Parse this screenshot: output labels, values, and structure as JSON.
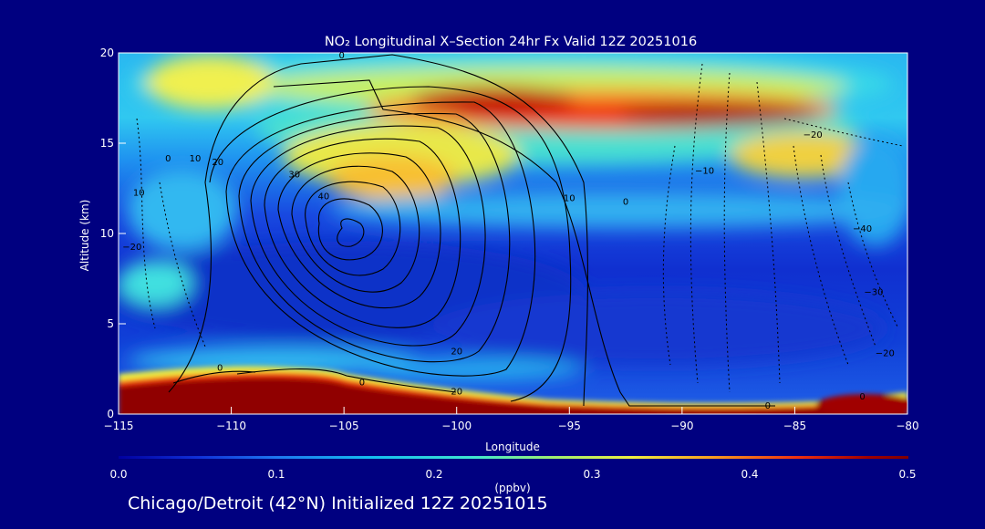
{
  "chart_data": {
    "type": "heatmap",
    "title": "NO₂ Longitudinal X–Section 24hr  Fx Valid 12Z 20251016",
    "xlabel": "Longitude",
    "ylabel": "Altitude (km)",
    "xlim": [
      -115,
      -80
    ],
    "ylim": [
      0,
      20
    ],
    "x_ticks": [
      -115,
      -110,
      -105,
      -100,
      -95,
      -90,
      -85,
      -80
    ],
    "x_tick_labels": [
      "−115",
      "−110",
      "−105",
      "−100",
      "−95",
      "−90",
      "−85",
      "−80"
    ],
    "y_ticks": [
      0,
      5,
      10,
      15,
      20
    ],
    "y_tick_labels": [
      "0",
      "5",
      "10",
      "15",
      "20"
    ],
    "colorbar": {
      "label": "(ppbv)",
      "min": 0.0,
      "max": 0.5,
      "ticks": [
        0.0,
        0.1,
        0.2,
        0.3,
        0.4,
        0.5
      ],
      "tick_labels": [
        "0.0",
        "0.1",
        "0.2",
        "0.3",
        "0.4",
        "0.5"
      ]
    },
    "contour_labels": [
      {
        "text": "0",
        "x": -105.1,
        "y": 19.9
      },
      {
        "text": "0",
        "x": -112.8,
        "y": 14.2
      },
      {
        "text": "10",
        "x": -111.6,
        "y": 14.2
      },
      {
        "text": "20",
        "x": -110.6,
        "y": 14.0
      },
      {
        "text": "30",
        "x": -107.2,
        "y": 13.3
      },
      {
        "text": "40",
        "x": -105.9,
        "y": 12.1
      },
      {
        "text": "10",
        "x": -114.1,
        "y": 12.3
      },
      {
        "text": "−20",
        "x": -114.4,
        "y": 9.3
      },
      {
        "text": "10",
        "x": -95.0,
        "y": 12.0
      },
      {
        "text": "0",
        "x": -92.5,
        "y": 11.8
      },
      {
        "text": "−10",
        "x": -89.0,
        "y": 13.5
      },
      {
        "text": "−20",
        "x": -84.2,
        "y": 15.5
      },
      {
        "text": "−40",
        "x": -82.0,
        "y": 10.3
      },
      {
        "text": "−30",
        "x": -81.5,
        "y": 6.8
      },
      {
        "text": "−20",
        "x": -81.0,
        "y": 3.4
      },
      {
        "text": "20",
        "x": -100.0,
        "y": 3.5
      },
      {
        "text": "0",
        "x": -110.5,
        "y": 2.6
      },
      {
        "text": "0",
        "x": -104.2,
        "y": 1.8
      },
      {
        "text": "20",
        "x": -100.0,
        "y": 1.3
      },
      {
        "text": "0",
        "x": -86.2,
        "y": 0.5
      },
      {
        "text": "0",
        "x": -82.0,
        "y": 1.0
      }
    ]
  },
  "footer": "Chicago/Detroit (42°N) Initialized 12Z 20251015",
  "colors": {
    "background": "#000080",
    "scale": [
      "#0000a0",
      "#1030d8",
      "#1e78f0",
      "#14c0f0",
      "#40e8d0",
      "#a0f070",
      "#f0f040",
      "#f8a020",
      "#f03010",
      "#a00000",
      "#800000"
    ]
  }
}
